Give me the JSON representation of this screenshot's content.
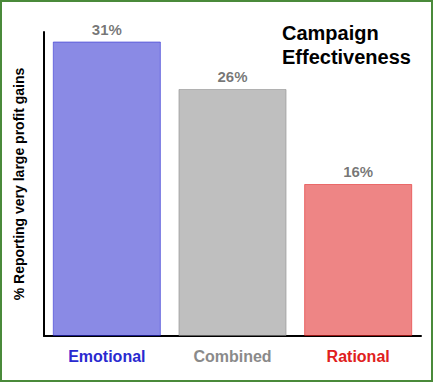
{
  "chart_data": {
    "type": "bar",
    "title": "Campaign Effectiveness",
    "y_label": "% Reporting very large profit gains",
    "categories": [
      "Emotional",
      "Combined",
      "Rational"
    ],
    "values": [
      31,
      26,
      16
    ],
    "value_labels": [
      "31%",
      "26%",
      "16%"
    ],
    "colors": [
      "#2a2ad0",
      "#8a8a8a",
      "#e02020"
    ],
    "ylim": [
      0,
      32
    ],
    "data_labels": true,
    "tick_labels": "x",
    "grid": false
  }
}
